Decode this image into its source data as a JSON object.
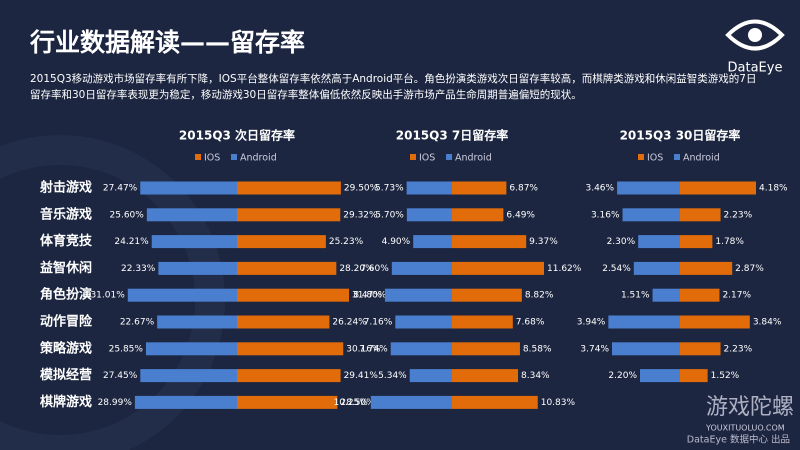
{
  "header": {
    "title": "行业数据解读——留存率",
    "logo": "DataEye",
    "description": [
      "2015Q3移动游戏市场留存率有所下降，IOS平台整体留存率依然高于Android平台。角色扮演类游戏次日留存率较高，而棋牌类游戏和休闲益智类游戏的7日",
      "留存率和30日留存率表现更为稳定，移动游戏30日留存率整体偏低依然反映出手游市场产品生命周期普遍偏短的现状。"
    ]
  },
  "footer": {
    "credit": "DataEye 数据中心 出品",
    "watermark": "游戏陀螺",
    "watermark_url": "YOUXITUOLUO.COM"
  },
  "chart_data": [
    {
      "type": "butterfly",
      "title": "2015Q3  次日留存率",
      "categories": [
        "射击游戏",
        "音乐游戏",
        "体育竞技",
        "益智休闲",
        "角色扮演",
        "动作冒险",
        "策略游戏",
        "模拟经营",
        "棋牌游戏"
      ],
      "series": [
        {
          "name": "IOS",
          "color": "#e36c0a",
          "side": "right",
          "values": [
            29.5,
            29.32,
            25.23,
            28.2,
            31.8,
            26.24,
            30.16,
            29.41,
            28.5
          ],
          "value_labels": [
            "29.50%",
            "29.32%",
            "25.23%",
            "28.20%",
            "31.80%",
            "26.24%",
            "30.16%",
            "29.41%",
            "28.50%"
          ]
        },
        {
          "name": "Android",
          "color": "#4a7fcf",
          "side": "left",
          "values": [
            27.47,
            25.6,
            24.21,
            22.33,
            31.01,
            22.67,
            25.85,
            27.45,
            28.99
          ],
          "value_labels": [
            "27.47%",
            "25.60%",
            "24.21%",
            "22.33%",
            "31.01%",
            "22.67%",
            "25.85%",
            "27.45%",
            "28.99%"
          ]
        }
      ]
    },
    {
      "type": "butterfly",
      "title": "2015Q3  7日留存率",
      "series": [
        {
          "name": "IOS",
          "color": "#e36c0a",
          "side": "right",
          "values": [
            6.87,
            6.49,
            9.37,
            11.62,
            8.82,
            7.68,
            8.58,
            8.34,
            10.83
          ],
          "value_labels": [
            "6.87%",
            "6.49%",
            "9.37%",
            "11.62%",
            "8.82%",
            "7.68%",
            "8.58%",
            "8.34%",
            "10.83%"
          ]
        },
        {
          "name": "Android",
          "color": "#4a7fcf",
          "side": "left",
          "values": [
            5.73,
            5.7,
            4.9,
            7.6,
            8.47,
            7.16,
            7.74,
            5.34,
            10.25
          ],
          "value_labels": [
            "5.73%",
            "5.70%",
            "4.90%",
            "7.60%",
            "8.47%",
            "7.16%",
            "7.74%",
            "5.34%",
            "10.25%"
          ]
        }
      ]
    },
    {
      "type": "butterfly",
      "title": "2015Q3 30日留存率",
      "series": [
        {
          "name": "IOS",
          "color": "#e36c0a",
          "side": "right",
          "values": [
            4.18,
            2.23,
            1.78,
            2.87,
            2.17,
            3.84,
            2.23,
            1.52,
            null
          ],
          "value_labels": [
            "4.18%",
            "2.23%",
            "1.78%",
            "2.87%",
            "2.17%",
            "3.84%",
            "2.23%",
            "1.52%",
            null
          ]
        },
        {
          "name": "Android",
          "color": "#4a7fcf",
          "side": "left",
          "values": [
            3.46,
            3.16,
            2.3,
            2.54,
            1.51,
            3.94,
            3.74,
            2.2,
            null
          ],
          "value_labels": [
            "3.46%",
            "3.16%",
            "2.30%",
            "2.54%",
            "1.51%",
            "3.94%",
            "3.74%",
            "2.20%",
            null
          ]
        }
      ]
    }
  ]
}
